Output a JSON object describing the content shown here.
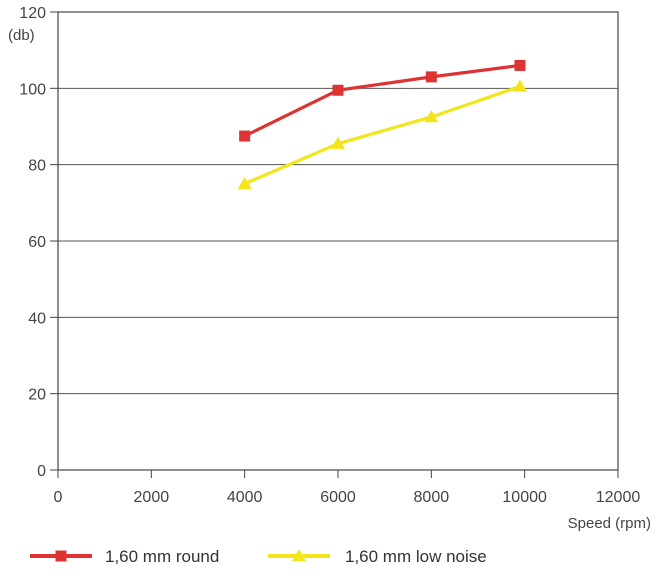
{
  "chart_data": {
    "type": "line",
    "title": "",
    "xlabel": "Speed (rpm)",
    "ylabel": "(db)",
    "xlim": [
      0,
      12000
    ],
    "ylim": [
      0,
      120
    ],
    "xticks": [
      0,
      2000,
      4000,
      6000,
      8000,
      10000,
      12000
    ],
    "yticks": [
      0,
      20,
      40,
      60,
      80,
      100,
      120
    ],
    "grid": "horizontal",
    "legend_position": "bottom",
    "series": [
      {
        "name": "1,60 mm round",
        "color": "#dd3333",
        "marker": "square",
        "x": [
          4000,
          6000,
          8000,
          9900
        ],
        "y": [
          87.5,
          99.5,
          103,
          106
        ]
      },
      {
        "name": "1,60 mm low noise",
        "color": "#f2e61a",
        "marker": "triangle",
        "x": [
          4000,
          6000,
          8000,
          9900
        ],
        "y": [
          75,
          85.5,
          92.5,
          100.5
        ]
      }
    ]
  }
}
